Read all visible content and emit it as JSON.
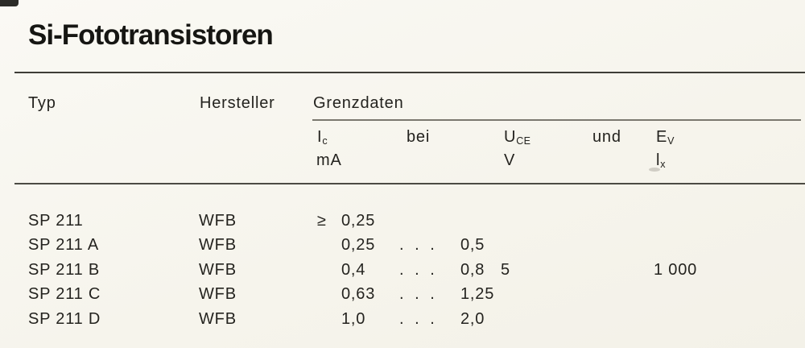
{
  "page": {
    "title": "Si-Fototransistoren"
  },
  "table": {
    "headers": {
      "typ": "Typ",
      "hersteller": "Hersteller",
      "grenzdaten": "Grenzdaten"
    },
    "subheaders": {
      "ic_symbol": "I",
      "ic_sub": "c",
      "ic_unit": "mA",
      "bei": "bei",
      "uce_symbol": "U",
      "uce_sub": "CE",
      "uce_unit": "V",
      "und": "und",
      "ev_symbol": "E",
      "ev_sub": "V",
      "ev_unit_symbol": "l",
      "ev_unit_sub": "x"
    },
    "rows": [
      {
        "typ": "SP 211",
        "hersteller": "WFB",
        "ic_prefix": "≥",
        "ic_low": "0,25",
        "ic_dots": "",
        "ic_high": "",
        "uce": "",
        "ev": ""
      },
      {
        "typ": "SP 211 A",
        "hersteller": "WFB",
        "ic_prefix": "",
        "ic_low": "0,25",
        "ic_dots": ". . .",
        "ic_high": "0,5",
        "uce": "",
        "ev": ""
      },
      {
        "typ": "SP 211 B",
        "hersteller": "WFB",
        "ic_prefix": "",
        "ic_low": "0,4",
        "ic_dots": ". . .",
        "ic_high": "0,8",
        "uce": "5",
        "ev": "1 000"
      },
      {
        "typ": "SP 211 C",
        "hersteller": "WFB",
        "ic_prefix": "",
        "ic_low": "0,63",
        "ic_dots": ". . .",
        "ic_high": "1,25",
        "uce": "",
        "ev": ""
      },
      {
        "typ": "SP 211 D",
        "hersteller": "WFB",
        "ic_prefix": "",
        "ic_low": "1,0",
        "ic_dots": ". . .",
        "ic_high": "2,0",
        "uce": "",
        "ev": ""
      }
    ],
    "colors": {
      "paper": "#f6f4ec",
      "ink": "#23221e",
      "rule": "#3e3d37"
    }
  }
}
